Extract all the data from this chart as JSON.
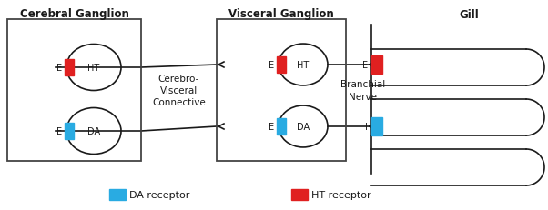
{
  "bg_color": "#ffffff",
  "title_cerebral": "Cerebral Ganglion",
  "title_visceral": "Visceral Ganglion",
  "title_gill": "Gill",
  "label_cerebro_visceral": "Cerebro-\nVisceral\nConnective",
  "label_branchial": "Branchial\nNerve",
  "ht_color": "#e02020",
  "da_color": "#29abe2",
  "box_edge_color": "#444444",
  "line_color": "#1a1a1a",
  "text_color": "#1a1a1a",
  "legend_da": "DA receptor",
  "legend_ht": "HT receptor",
  "figsize": [
    6.02,
    2.32
  ],
  "dpi": 100
}
